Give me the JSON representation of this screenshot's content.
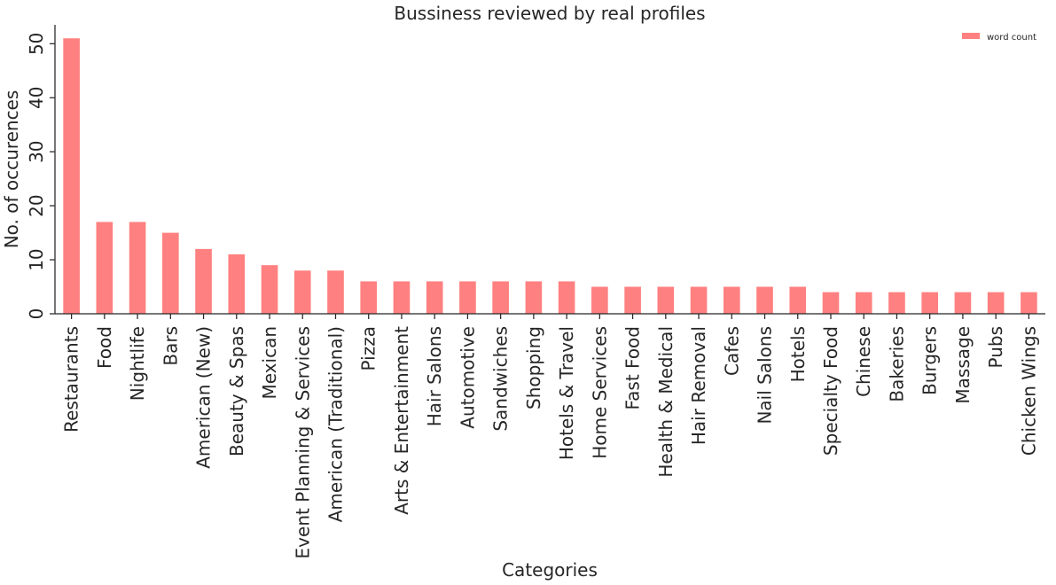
{
  "chart_data": {
    "type": "bar",
    "title": "Bussiness reviewed by real profiles",
    "xlabel": "Categories",
    "ylabel": "No. of occurences",
    "categories": [
      "Restaurants",
      "Food",
      "Nightlife",
      "Bars",
      "American (New)",
      "Beauty & Spas",
      "Mexican",
      "Event Planning & Services",
      "American (Traditional)",
      "Pizza",
      "Arts & Entertainment",
      "Hair Salons",
      "Automotive",
      "Sandwiches",
      "Shopping",
      "Hotels & Travel",
      "Home Services",
      "Fast Food",
      "Health & Medical",
      "Hair Removal",
      "Cafes",
      "Nail Salons",
      "Hotels",
      "Specialty Food",
      "Chinese",
      "Bakeries",
      "Burgers",
      "Massage",
      "Pubs",
      "Chicken Wings"
    ],
    "series": [
      {
        "name": "word count",
        "color": "#ff8080",
        "values": [
          51,
          17,
          17,
          15,
          12,
          11,
          9,
          8,
          8,
          6,
          6,
          6,
          6,
          6,
          6,
          6,
          5,
          5,
          5,
          5,
          5,
          5,
          5,
          4,
          4,
          4,
          4,
          4,
          4,
          4
        ]
      }
    ],
    "ylim": [
      0,
      53.5
    ],
    "yticks": [
      0,
      10,
      20,
      30,
      40,
      50
    ],
    "grid": false,
    "legend_position": "top-right"
  }
}
